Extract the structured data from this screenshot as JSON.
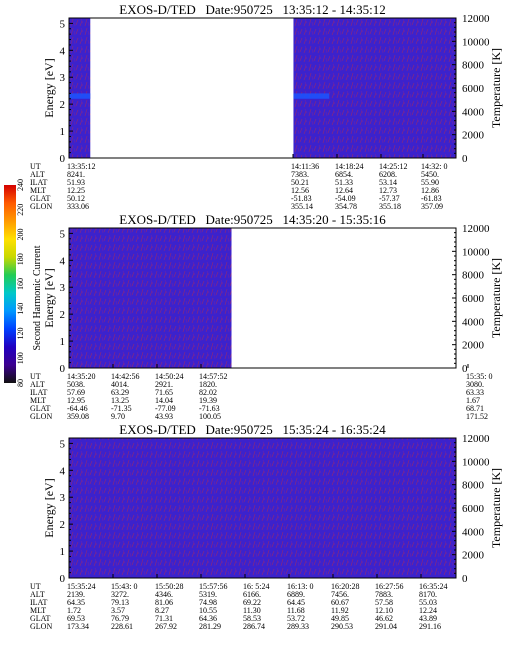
{
  "panels": [
    {
      "title": "EXOS-D/TED   Date:950725   13:35:12 - 14:35:12",
      "ylabel_left": "Energy [eV]",
      "ylabel_right": "Temperature [K]",
      "left_ticks": [
        "5",
        "4",
        "3",
        "2",
        "1",
        "0"
      ],
      "right_ticks": [
        "12000",
        "10000",
        "8000",
        "6000",
        "4000",
        "2000",
        "0"
      ],
      "eph": {
        "labels": [
          "UT",
          "ALT",
          "ILAT",
          "MLT",
          "GLAT",
          "GLON"
        ],
        "columns": [
          {
            "values": [
              "13:35:12",
              "8241.",
              "51.93",
              "12.25",
              "50.12",
              "333.06"
            ]
          },
          {
            "values": [
              "14:11:36",
              "7383.",
              "50.21",
              "12.56",
              "-51.83",
              "355.14"
            ]
          },
          {
            "values": [
              "14:18:24",
              "6854.",
              "51.33",
              "12.64",
              "-54.09",
              "354.78"
            ]
          },
          {
            "values": [
              "14:25:12",
              "6208.",
              "53.14",
              "12.73",
              "-57.37",
              "355.18"
            ]
          },
          {
            "values": [
              "14:32: 0",
              "5450.",
              "55.90",
              "12.86",
              "-61.83",
              "357.09"
            ]
          }
        ]
      }
    },
    {
      "title": "EXOS-D/TED   Date:950725   14:35:20 - 15:35:16",
      "ylabel_left": "Energy [eV]",
      "ylabel_right": "Temperature [K]",
      "left_ticks": [
        "5",
        "4",
        "3",
        "2",
        "1",
        "0"
      ],
      "right_ticks": [
        "12000",
        "10000",
        "8000",
        "6000",
        "4000",
        "2000",
        "0"
      ],
      "eph": {
        "labels": [
          "UT",
          "ALT",
          "ILAT",
          "MLT",
          "GLAT",
          "GLON"
        ],
        "columns": [
          {
            "values": [
              "14:35:20",
              "5038.",
              "57.69",
              "12.95",
              "-64.46",
              "359.08"
            ]
          },
          {
            "values": [
              "14:42:56",
              "4014.",
              "63.29",
              "13.25",
              "-71.35",
              "9.70"
            ]
          },
          {
            "values": [
              "14:50:24",
              "2921.",
              "71.65",
              "14.04",
              "-77.09",
              "43.93"
            ]
          },
          {
            "values": [
              "14:57:52",
              "1820.",
              "82.02",
              "19.39",
              "-71.63",
              "100.05"
            ]
          },
          {
            "values": [
              "15:35: 0",
              "3080.",
              "63.33",
              "1.67",
              "68.71",
              "171.52"
            ]
          }
        ]
      }
    },
    {
      "title": "EXOS-D/TED   Date:950725   15:35:24 - 16:35:24",
      "ylabel_left": "Energy [eV]",
      "ylabel_right": "Temperature [K]",
      "left_ticks": [
        "5",
        "4",
        "3",
        "2",
        "1",
        "0"
      ],
      "right_ticks": [
        "12000",
        "10000",
        "8000",
        "6000",
        "4000",
        "2000",
        "0"
      ],
      "eph": {
        "labels": [
          "UT",
          "ALT",
          "ILAT",
          "MLT",
          "GLAT",
          "GLON"
        ],
        "columns": [
          {
            "values": [
              "15:35:24",
              "2139.",
              "64.35",
              "1.72",
              "69.53",
              "173.34"
            ]
          },
          {
            "values": [
              "15:43: 0",
              "3272.",
              "79.13",
              "3.57",
              "76.79",
              "228.61"
            ]
          },
          {
            "values": [
              "15:50:28",
              "4346.",
              "81.06",
              "8.27",
              "71.31",
              "267.92"
            ]
          },
          {
            "values": [
              "15:57:56",
              "5319.",
              "74.98",
              "10.55",
              "64.36",
              "281.29"
            ]
          },
          {
            "values": [
              "16: 5:24",
              "6166.",
              "69.22",
              "11.30",
              "58.53",
              "286.74"
            ]
          },
          {
            "values": [
              "16:13: 0",
              "6889.",
              "64.45",
              "11.68",
              "53.72",
              "289.33"
            ]
          },
          {
            "values": [
              "16:20:28",
              "7456.",
              "60.67",
              "11.92",
              "49.85",
              "290.53"
            ]
          },
          {
            "values": [
              "16:27:56",
              "7883.",
              "57.58",
              "12.10",
              "46.62",
              "291.04"
            ]
          },
          {
            "values": [
              "16:35:24",
              "8170.",
              "55.03",
              "12.24",
              "43.89",
              "291.16"
            ]
          }
        ]
      }
    }
  ],
  "colorbar": {
    "label": "Second Harmonic Current",
    "ticks": [
      "240",
      "220",
      "200",
      "180",
      "160",
      "140",
      "120",
      "100",
      "80"
    ],
    "colors": [
      "#d40000",
      "#ff5a00",
      "#ff9a00",
      "#ffe000",
      "#c8d800",
      "#22cc55",
      "#00c8c8",
      "#0099ff",
      "#0040ff",
      "#2000c0",
      "#3c0090",
      "#101010"
    ]
  },
  "chart_data": [
    {
      "type": "heatmap",
      "title": "EXOS-D/TED   Date:950725   13:35:12 - 14:35:12",
      "xlabel": "UT",
      "ylabel": "Energy [eV]",
      "ylabel_right": "Temperature [K]",
      "ylim": [
        0,
        5.2
      ],
      "ylim_right": [
        0,
        12000
      ],
      "x_ticks": [
        "13:35:12",
        "14:11:36",
        "14:18:24",
        "14:25:12",
        "14:32: 0"
      ],
      "data_segments": [
        {
          "start": "13:35:12",
          "end": "13:38:30"
        },
        {
          "start": "14:10:00",
          "end": "14:35:12"
        }
      ],
      "dominant_value": 120,
      "feature": {
        "energy_eV": [
          2.2,
          2.4
        ],
        "value": 150
      }
    },
    {
      "type": "heatmap",
      "title": "EXOS-D/TED   Date:950725   14:35:20 - 15:35:16",
      "xlabel": "UT",
      "ylabel": "Energy [eV]",
      "ylabel_right": "Temperature [K]",
      "ylim": [
        0,
        5.2
      ],
      "ylim_right": [
        0,
        12000
      ],
      "x_ticks": [
        "14:35:20",
        "14:42:56",
        "14:50:24",
        "14:57:52",
        "15:35: 0"
      ],
      "data_segments": [
        {
          "start": "14:35:20",
          "end": "15:00:30"
        }
      ],
      "dominant_value": 120
    },
    {
      "type": "heatmap",
      "title": "EXOS-D/TED   Date:950725   15:35:24 - 16:35:24",
      "xlabel": "UT",
      "ylabel": "Energy [eV]",
      "ylabel_right": "Temperature [K]",
      "ylim": [
        0,
        5.2
      ],
      "ylim_right": [
        0,
        12000
      ],
      "x_ticks": [
        "15:35:24",
        "15:43: 0",
        "15:50:28",
        "15:57:56",
        "16: 5:24",
        "16:13: 0",
        "16:20:28",
        "16:27:56",
        "16:35:24"
      ],
      "data_segments": [
        {
          "start": "15:35:24",
          "end": "16:35:24"
        }
      ],
      "dominant_value": 120
    }
  ]
}
